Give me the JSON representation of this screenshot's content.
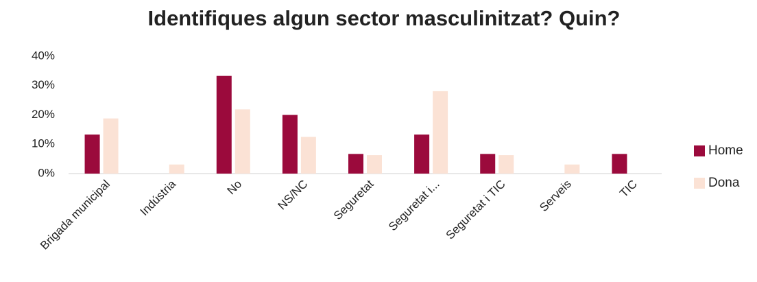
{
  "chart_data": {
    "type": "bar",
    "title": "Identifiques algun sector masculinitzat? Quin?",
    "categories": [
      "Brigada municipal",
      "Indústria",
      "No",
      "NS/NC",
      "Seguretat",
      "Seguretat i...",
      "Seguretat i TIC",
      "Serveis",
      "TIC"
    ],
    "series": [
      {
        "name": "Home",
        "color": "#9b0a3c",
        "values": [
          13.3,
          0,
          33.3,
          20,
          6.7,
          13.3,
          6.7,
          0,
          6.7
        ]
      },
      {
        "name": "Dona",
        "color": "#fbe2d5",
        "values": [
          18.8,
          3.1,
          21.9,
          12.5,
          6.3,
          28.1,
          6.3,
          3.1,
          0
        ]
      }
    ],
    "ylim": [
      0,
      40
    ],
    "yticks": [
      {
        "value": 0,
        "label": "0%"
      },
      {
        "value": 10,
        "label": "10%"
      },
      {
        "value": 20,
        "label": "20%"
      },
      {
        "value": 30,
        "label": "30%"
      },
      {
        "value": 40,
        "label": "40%"
      }
    ],
    "grid": false,
    "legend": "right"
  }
}
